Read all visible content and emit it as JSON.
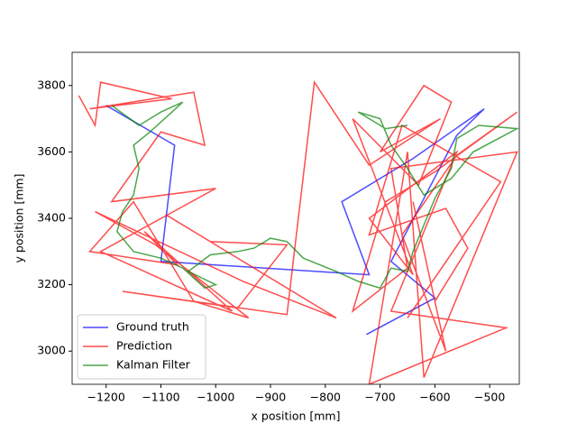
{
  "chart_data": {
    "type": "line",
    "xlabel": "x position [mm]",
    "ylabel": "y position [mm]",
    "xlim": [
      -1262,
      -446
    ],
    "ylim": [
      2900,
      3900
    ],
    "xticks": [
      {
        "value": -1200,
        "label": "−1200"
      },
      {
        "value": -1100,
        "label": "−1100"
      },
      {
        "value": -1000,
        "label": "−1000"
      },
      {
        "value": -900,
        "label": "−900"
      },
      {
        "value": -800,
        "label": "−800"
      },
      {
        "value": -700,
        "label": "−700"
      },
      {
        "value": -600,
        "label": "−600"
      },
      {
        "value": -500,
        "label": "−500"
      }
    ],
    "yticks": [
      3000,
      3200,
      3400,
      3600,
      3800
    ],
    "legend": "lower left",
    "series": [
      {
        "name": "Ground truth",
        "color": "#0000ff",
        "x": [
          -1200,
          -1075,
          -1100,
          -720,
          -770,
          -640,
          -510,
          -560,
          -680,
          -600,
          -725
        ],
        "values": [
          3740,
          3620,
          3270,
          3230,
          3450,
          3580,
          3730,
          3650,
          3270,
          3160,
          3050
        ]
      },
      {
        "name": "Prediction",
        "color": "#ff0000",
        "x": [
          -1250,
          -1220,
          -1210,
          -1080,
          -1230,
          -1040,
          -1020,
          -1100,
          -1190,
          -1000,
          -1210,
          -970,
          -1130,
          -1070,
          -1230,
          -1150,
          -1040,
          -940,
          -1110,
          -1220,
          -950,
          -780,
          -1090,
          -1010,
          -870,
          -960,
          -1170,
          -870,
          -820,
          -720,
          -590,
          -700,
          -620,
          -570,
          -630,
          -750,
          -640,
          -720,
          -560,
          -680,
          -470,
          -720,
          -650,
          -620,
          -450,
          -680,
          -650,
          -750,
          -690,
          -600,
          -450,
          -560,
          -660,
          -580,
          -640,
          -600,
          -540,
          -580,
          -720,
          -660,
          -480,
          -650
        ],
        "values": [
          3770,
          3680,
          3810,
          3760,
          3730,
          3780,
          3620,
          3660,
          3450,
          3490,
          3300,
          3120,
          3360,
          3260,
          3300,
          3450,
          3150,
          3100,
          3320,
          3420,
          3210,
          3100,
          3410,
          3330,
          3320,
          3130,
          3180,
          3110,
          3810,
          3560,
          3700,
          3600,
          3800,
          3750,
          3500,
          3700,
          3230,
          3400,
          3600,
          3120,
          3070,
          2900,
          3600,
          2920,
          3600,
          3550,
          3250,
          3120,
          3450,
          3540,
          3720,
          3590,
          3350,
          3000,
          3450,
          3150,
          3310,
          3430,
          3350,
          3680,
          3510,
          3100
        ]
      },
      {
        "name": "Kalman Filter",
        "color": "#008000",
        "x": [
          -1190,
          -1140,
          -1100,
          -1060,
          -1120,
          -1150,
          -1140,
          -1150,
          -1170,
          -1180,
          -1150,
          -1100,
          -1060,
          -1020,
          -1000,
          -1050,
          -1010,
          -960,
          -930,
          -900,
          -870,
          -840,
          -780,
          -740,
          -700,
          -680,
          -650,
          -640,
          -620,
          -600,
          -570,
          -560,
          -520,
          -450,
          -530,
          -570,
          -620,
          -650,
          -680,
          -700,
          -740,
          -690,
          -650
        ],
        "values": [
          3740,
          3680,
          3720,
          3750,
          3660,
          3620,
          3550,
          3470,
          3420,
          3360,
          3300,
          3280,
          3250,
          3190,
          3200,
          3240,
          3290,
          3300,
          3310,
          3340,
          3330,
          3280,
          3240,
          3210,
          3190,
          3250,
          3240,
          3300,
          3380,
          3460,
          3550,
          3640,
          3680,
          3670,
          3600,
          3520,
          3470,
          3550,
          3620,
          3700,
          3720,
          3670,
          3680
        ]
      }
    ]
  }
}
